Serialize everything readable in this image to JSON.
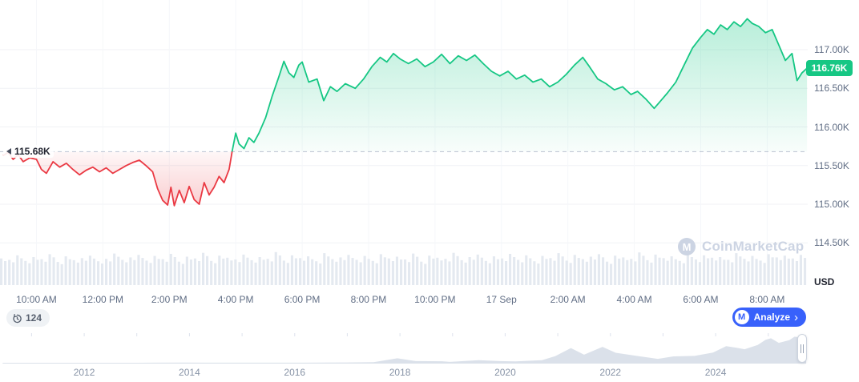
{
  "axis_right": {
    "currency_label": "USD"
  },
  "price_badge": {
    "text": "116.76K",
    "bg": "#16c784"
  },
  "baseline_label": {
    "text": "115.68K"
  },
  "controls": {
    "history_count": "124",
    "analyze_label": "Analyze",
    "analyze_chevron": "›",
    "analyze_bg": "#3861fb",
    "logo_letter": "M"
  },
  "watermark": {
    "logo_letter": "M",
    "text": "CoinMarketCap"
  },
  "chart_data": [
    {
      "type": "area",
      "name": "btc-price-intraday",
      "baseline": 115.68,
      "last_price": 116.76,
      "x_unit": "hours since 09:00 AM Sep 16",
      "y_unit": "USD thousands",
      "ylim": [
        114.3,
        117.55
      ],
      "up_color": "#16c784",
      "down_color": "#ea3943",
      "y_ticks": {
        "values": [
          117.0,
          116.5,
          116.0,
          115.5,
          115.0,
          114.5
        ],
        "labels": [
          "117.00K",
          "116.50K",
          "116.00K",
          "115.50K",
          "115.00K",
          "114.50K"
        ]
      },
      "x_ticks": {
        "hours": [
          1,
          3,
          5,
          7,
          9,
          11,
          13,
          15,
          17,
          19,
          21,
          23
        ],
        "labels": [
          "10:00 AM",
          "12:00 PM",
          "2:00 PM",
          "4:00 PM",
          "6:00 PM",
          "8:00 PM",
          "10:00 PM",
          "17 Sep",
          "2:00 AM",
          "4:00 AM",
          "6:00 AM",
          "8:00 AM"
        ]
      },
      "series": [
        {
          "name": "price",
          "points": [
            [
              0.0,
              115.63
            ],
            [
              0.15,
              115.67
            ],
            [
              0.3,
              115.58
            ],
            [
              0.45,
              115.64
            ],
            [
              0.6,
              115.55
            ],
            [
              0.8,
              115.6
            ],
            [
              1.0,
              115.58
            ],
            [
              1.15,
              115.45
            ],
            [
              1.3,
              115.4
            ],
            [
              1.5,
              115.55
            ],
            [
              1.7,
              115.48
            ],
            [
              1.9,
              115.53
            ],
            [
              2.1,
              115.45
            ],
            [
              2.3,
              115.38
            ],
            [
              2.5,
              115.44
            ],
            [
              2.7,
              115.48
            ],
            [
              2.9,
              115.42
            ],
            [
              3.1,
              115.47
            ],
            [
              3.3,
              115.4
            ],
            [
              3.5,
              115.45
            ],
            [
              3.7,
              115.5
            ],
            [
              3.9,
              115.54
            ],
            [
              4.1,
              115.57
            ],
            [
              4.3,
              115.5
            ],
            [
              4.5,
              115.42
            ],
            [
              4.65,
              115.2
            ],
            [
              4.8,
              115.05
            ],
            [
              4.95,
              114.99
            ],
            [
              5.05,
              115.22
            ],
            [
              5.15,
              114.98
            ],
            [
              5.3,
              115.18
            ],
            [
              5.45,
              115.02
            ],
            [
              5.6,
              115.23
            ],
            [
              5.75,
              115.06
            ],
            [
              5.9,
              115.0
            ],
            [
              6.05,
              115.28
            ],
            [
              6.2,
              115.12
            ],
            [
              6.35,
              115.22
            ],
            [
              6.5,
              115.36
            ],
            [
              6.65,
              115.28
            ],
            [
              6.8,
              115.45
            ],
            [
              6.9,
              115.7
            ],
            [
              7.0,
              115.92
            ],
            [
              7.1,
              115.78
            ],
            [
              7.25,
              115.72
            ],
            [
              7.4,
              115.86
            ],
            [
              7.55,
              115.8
            ],
            [
              7.7,
              115.92
            ],
            [
              7.9,
              116.12
            ],
            [
              8.1,
              116.4
            ],
            [
              8.3,
              116.65
            ],
            [
              8.45,
              116.85
            ],
            [
              8.6,
              116.7
            ],
            [
              8.75,
              116.64
            ],
            [
              8.9,
              116.8
            ],
            [
              9.0,
              116.84
            ],
            [
              9.2,
              116.58
            ],
            [
              9.45,
              116.62
            ],
            [
              9.65,
              116.34
            ],
            [
              9.85,
              116.52
            ],
            [
              10.05,
              116.46
            ],
            [
              10.3,
              116.56
            ],
            [
              10.6,
              116.5
            ],
            [
              10.85,
              116.62
            ],
            [
              11.1,
              116.78
            ],
            [
              11.35,
              116.9
            ],
            [
              11.55,
              116.84
            ],
            [
              11.75,
              116.95
            ],
            [
              11.95,
              116.88
            ],
            [
              12.2,
              116.82
            ],
            [
              12.45,
              116.88
            ],
            [
              12.7,
              116.78
            ],
            [
              12.95,
              116.84
            ],
            [
              13.2,
              116.94
            ],
            [
              13.45,
              116.82
            ],
            [
              13.7,
              116.92
            ],
            [
              13.95,
              116.86
            ],
            [
              14.2,
              116.93
            ],
            [
              14.45,
              116.82
            ],
            [
              14.7,
              116.72
            ],
            [
              14.95,
              116.66
            ],
            [
              15.2,
              116.72
            ],
            [
              15.45,
              116.62
            ],
            [
              15.7,
              116.67
            ],
            [
              15.95,
              116.58
            ],
            [
              16.2,
              116.62
            ],
            [
              16.45,
              116.52
            ],
            [
              16.7,
              116.58
            ],
            [
              16.95,
              116.68
            ],
            [
              17.2,
              116.8
            ],
            [
              17.45,
              116.9
            ],
            [
              17.65,
              116.78
            ],
            [
              17.9,
              116.62
            ],
            [
              18.15,
              116.56
            ],
            [
              18.4,
              116.48
            ],
            [
              18.65,
              116.52
            ],
            [
              18.9,
              116.42
            ],
            [
              19.1,
              116.46
            ],
            [
              19.35,
              116.36
            ],
            [
              19.6,
              116.24
            ],
            [
              19.8,
              116.34
            ],
            [
              20.0,
              116.44
            ],
            [
              20.25,
              116.58
            ],
            [
              20.5,
              116.8
            ],
            [
              20.75,
              117.02
            ],
            [
              21.0,
              117.16
            ],
            [
              21.2,
              117.26
            ],
            [
              21.4,
              117.2
            ],
            [
              21.6,
              117.32
            ],
            [
              21.8,
              117.26
            ],
            [
              22.0,
              117.36
            ],
            [
              22.2,
              117.3
            ],
            [
              22.4,
              117.4
            ],
            [
              22.55,
              117.34
            ],
            [
              22.75,
              117.3
            ],
            [
              22.95,
              117.22
            ],
            [
              23.15,
              117.26
            ],
            [
              23.35,
              117.06
            ],
            [
              23.55,
              116.86
            ],
            [
              23.75,
              116.95
            ],
            [
              23.9,
              116.6
            ],
            [
              24.05,
              116.7
            ],
            [
              24.2,
              116.76
            ]
          ]
        }
      ],
      "volume_bars": {
        "color": "#e4e9f0",
        "values": [
          0.62,
          0.58,
          0.71,
          0.55,
          0.66,
          0.6,
          0.74,
          0.52,
          0.68,
          0.57,
          0.63,
          0.7,
          0.54,
          0.61,
          0.76,
          0.58,
          0.65,
          0.72,
          0.56,
          0.69,
          0.6,
          0.75,
          0.53,
          0.67,
          0.62,
          0.78,
          0.55,
          0.7,
          0.64,
          0.59,
          0.73,
          0.57,
          0.66,
          0.61,
          0.8,
          0.56,
          0.71,
          0.63,
          0.68,
          0.54,
          0.77,
          0.6,
          0.65,
          0.72,
          0.58,
          0.69,
          0.55,
          0.74,
          0.62,
          0.67,
          0.59,
          0.76,
          0.53,
          0.7,
          0.64,
          0.61,
          0.78,
          0.57,
          0.66,
          0.73,
          0.55,
          0.68,
          0.62,
          0.75,
          0.58,
          0.71,
          0.54,
          0.69,
          0.63,
          0.77,
          0.56,
          0.72,
          0.6,
          0.67,
          0.74,
          0.53,
          0.7,
          0.65,
          0.61,
          0.79,
          0.57,
          0.73,
          0.63,
          0.68,
          0.55,
          0.75,
          0.59,
          0.71,
          0.64,
          0.66,
          0.58,
          0.77,
          0.61,
          0.69,
          0.56,
          0.74,
          0.65,
          0.7,
          0.62,
          0.72
        ]
      }
    },
    {
      "type": "area",
      "name": "all-time-range-minimap",
      "x_unit": "year",
      "y_unit": "USD thousands",
      "xlim": [
        2010.4,
        2025.78
      ],
      "fill": "#dbe1ea",
      "year_label_values": [
        2012,
        2014,
        2016,
        2018,
        2020,
        2022,
        2024
      ],
      "points": [
        [
          2010.45,
          0.01
        ],
        [
          2011.0,
          0.02
        ],
        [
          2011.5,
          0.03
        ],
        [
          2012.0,
          0.01
        ],
        [
          2012.5,
          0.01
        ],
        [
          2013.0,
          0.1
        ],
        [
          2013.3,
          0.25
        ],
        [
          2013.9,
          1.1
        ],
        [
          2014.3,
          0.5
        ],
        [
          2015.0,
          0.25
        ],
        [
          2015.8,
          0.4
        ],
        [
          2016.5,
          0.7
        ],
        [
          2017.0,
          1.2
        ],
        [
          2017.5,
          2.5
        ],
        [
          2017.95,
          19.0
        ],
        [
          2018.3,
          7.0
        ],
        [
          2018.8,
          6.5
        ],
        [
          2018.95,
          3.7
        ],
        [
          2019.5,
          11.0
        ],
        [
          2019.9,
          7.2
        ],
        [
          2020.2,
          6.0
        ],
        [
          2020.7,
          11.0
        ],
        [
          2020.95,
          28.0
        ],
        [
          2021.25,
          62.0
        ],
        [
          2021.5,
          34.0
        ],
        [
          2021.85,
          67.0
        ],
        [
          2022.1,
          42.0
        ],
        [
          2022.5,
          29.0
        ],
        [
          2022.9,
          16.5
        ],
        [
          2023.2,
          27.0
        ],
        [
          2023.6,
          29.0
        ],
        [
          2023.95,
          43.0
        ],
        [
          2024.2,
          70.0
        ],
        [
          2024.4,
          63.0
        ],
        [
          2024.55,
          57.0
        ],
        [
          2024.8,
          75.0
        ],
        [
          2024.95,
          97.0
        ],
        [
          2025.05,
          103.0
        ],
        [
          2025.2,
          84.0
        ],
        [
          2025.4,
          95.0
        ],
        [
          2025.5,
          110.0
        ],
        [
          2025.6,
          107.0
        ],
        [
          2025.72,
          117.0
        ]
      ]
    }
  ]
}
